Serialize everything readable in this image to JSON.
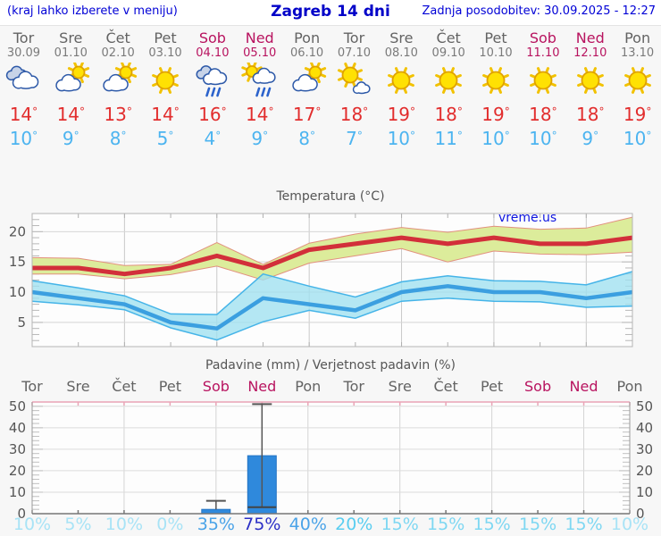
{
  "header": {
    "left_note": "(kraj lahko izberete v meniju)",
    "title": "Zagreb 14 dni",
    "updated": "Zadnja posodobitev: 30.09.2025 - 12:27"
  },
  "colors": {
    "weekday": "#636363",
    "weekday_date": "#7a7a7a",
    "weekend": "#b8135f",
    "tmax_text": "#e22d2d",
    "tmin_text": "#4cb4f0",
    "tmax_line": "#d22f3a",
    "tmax_band_fill": "#dcec9b",
    "tmax_band_edge": "#e2907e",
    "tmin_line": "#3b9fe0",
    "tmin_band_fill": "#9fe0f0",
    "tmin_band_edge": "#45b4e8",
    "bar_fill": "#2f89dc",
    "bar_edge": "#2474c4",
    "whisker": "#555555",
    "grid": "#d6d6d6",
    "axis": "#9a9a9a",
    "precip_top_axis": "#eaa4b6",
    "header_blue": "#0000d6"
  },
  "forecast": {
    "days": [
      {
        "name": "Tor",
        "date": "30.09",
        "weekend": false,
        "icon": "cloudy",
        "tmax": 14,
        "tmin": 10,
        "pop": 10,
        "pop_color": "#a8e3f6"
      },
      {
        "name": "Sre",
        "date": "01.10",
        "weekend": false,
        "icon": "partly-sunny",
        "tmax": 14,
        "tmin": 9,
        "pop": 5,
        "pop_color": "#a8e3f6"
      },
      {
        "name": "Čet",
        "date": "02.10",
        "weekend": false,
        "icon": "partly-sunny",
        "tmax": 13,
        "tmin": 8,
        "pop": 10,
        "pop_color": "#a8e3f6"
      },
      {
        "name": "Pet",
        "date": "03.10",
        "weekend": false,
        "icon": "sunny",
        "tmax": 14,
        "tmin": 5,
        "pop": 0,
        "pop_color": "#a8e3f6"
      },
      {
        "name": "Sob",
        "date": "04.10",
        "weekend": true,
        "icon": "rain",
        "tmax": 16,
        "tmin": 4,
        "pop": 35,
        "pop_color": "#4aa3e8"
      },
      {
        "name": "Ned",
        "date": "05.10",
        "weekend": true,
        "icon": "sun-rain",
        "tmax": 14,
        "tmin": 9,
        "pop": 75,
        "pop_color": "#2b2fc6"
      },
      {
        "name": "Pon",
        "date": "06.10",
        "weekend": false,
        "icon": "partly-sunny",
        "tmax": 17,
        "tmin": 8,
        "pop": 40,
        "pop_color": "#4aa3e8"
      },
      {
        "name": "Tor",
        "date": "07.10",
        "weekend": false,
        "icon": "mostly-sunny",
        "tmax": 18,
        "tmin": 7,
        "pop": 20,
        "pop_color": "#59cdf0"
      },
      {
        "name": "Sre",
        "date": "08.10",
        "weekend": false,
        "icon": "sunny",
        "tmax": 19,
        "tmin": 10,
        "pop": 15,
        "pop_color": "#7ed7f2"
      },
      {
        "name": "Čet",
        "date": "09.10",
        "weekend": false,
        "icon": "sunny",
        "tmax": 18,
        "tmin": 11,
        "pop": 15,
        "pop_color": "#7ed7f2"
      },
      {
        "name": "Pet",
        "date": "10.10",
        "weekend": false,
        "icon": "sunny",
        "tmax": 19,
        "tmin": 10,
        "pop": 15,
        "pop_color": "#7ed7f2"
      },
      {
        "name": "Sob",
        "date": "11.10",
        "weekend": true,
        "icon": "sunny",
        "tmax": 18,
        "tmin": 10,
        "pop": 15,
        "pop_color": "#7ed7f2"
      },
      {
        "name": "Ned",
        "date": "12.10",
        "weekend": true,
        "icon": "sunny",
        "tmax": 18,
        "tmin": 9,
        "pop": 15,
        "pop_color": "#7ed7f2"
      },
      {
        "name": "Pon",
        "date": "13.10",
        "weekend": false,
        "icon": "sunny",
        "tmax": 19,
        "tmin": 10,
        "pop": 10,
        "pop_color": "#a8e3f6"
      }
    ]
  },
  "chart_data": [
    {
      "type": "area",
      "title": "Temperatura (°C)",
      "watermark": "vreme.us",
      "categories": [
        "30.09",
        "01.10",
        "02.10",
        "03.10",
        "04.10",
        "05.10",
        "06.10",
        "07.10",
        "08.10",
        "09.10",
        "10.10",
        "11.10",
        "12.10",
        "13.10"
      ],
      "series": [
        {
          "name": "tmax",
          "values": [
            14,
            14,
            13,
            14,
            16,
            14,
            17,
            18,
            19,
            18,
            19,
            18,
            18,
            19
          ]
        },
        {
          "name": "tmax_range_upper",
          "values": [
            15.7,
            15.6,
            14.4,
            14.6,
            18.2,
            14.6,
            18.1,
            19.6,
            20.7,
            19.9,
            20.9,
            20.4,
            20.6,
            22.4
          ]
        },
        {
          "name": "tmax_range_lower",
          "values": [
            13.0,
            13.0,
            12.2,
            12.9,
            14.3,
            12.0,
            14.8,
            16.0,
            17.2,
            15.0,
            16.8,
            16.3,
            16.2,
            16.6
          ]
        },
        {
          "name": "tmin",
          "values": [
            10,
            9,
            8,
            5,
            4,
            9,
            8,
            7,
            10,
            11,
            10,
            10,
            9,
            10
          ]
        },
        {
          "name": "tmin_range_upper",
          "values": [
            11.9,
            10.7,
            9.4,
            6.4,
            6.3,
            13.0,
            11.0,
            9.2,
            11.7,
            12.7,
            11.9,
            11.8,
            11.2,
            13.4
          ]
        },
        {
          "name": "tmin_range_lower",
          "values": [
            8.5,
            7.9,
            7.1,
            4.1,
            2.1,
            5.1,
            7.0,
            5.7,
            8.5,
            9.0,
            8.5,
            8.4,
            7.5,
            7.7
          ]
        }
      ],
      "ylim": [
        1,
        23
      ],
      "yticks": [
        5,
        10,
        15,
        20
      ],
      "grid_day_indices": [
        2,
        4,
        6,
        8,
        10,
        12
      ],
      "legend": "none",
      "grid": "on"
    },
    {
      "type": "bar",
      "title": "Padavine (mm) / Verjetnost padavin (%)",
      "categories": [
        "Tor",
        "Sre",
        "Čet",
        "Pet",
        "Sob",
        "Ned",
        "Pon",
        "Tor",
        "Sre",
        "Čet",
        "Pet",
        "Sob",
        "Ned",
        "Pon"
      ],
      "values": [
        0,
        0,
        0,
        0,
        2,
        27,
        0,
        0,
        0,
        0,
        0,
        0,
        0,
        0
      ],
      "whisker_high": [
        null,
        null,
        null,
        null,
        6,
        51,
        null,
        null,
        null,
        null,
        null,
        null,
        null,
        null
      ],
      "whisker_low": [
        null,
        null,
        null,
        null,
        null,
        3,
        null,
        null,
        null,
        null,
        null,
        null,
        null,
        null
      ],
      "probabilities": [
        10,
        5,
        10,
        0,
        35,
        75,
        40,
        20,
        15,
        15,
        15,
        15,
        15,
        10
      ],
      "ylim": [
        0,
        52
      ],
      "yticks": [
        0,
        10,
        20,
        30,
        40,
        50
      ],
      "grid_day_indices": [
        2,
        4,
        6,
        8,
        10,
        12
      ],
      "grid": "on"
    }
  ]
}
